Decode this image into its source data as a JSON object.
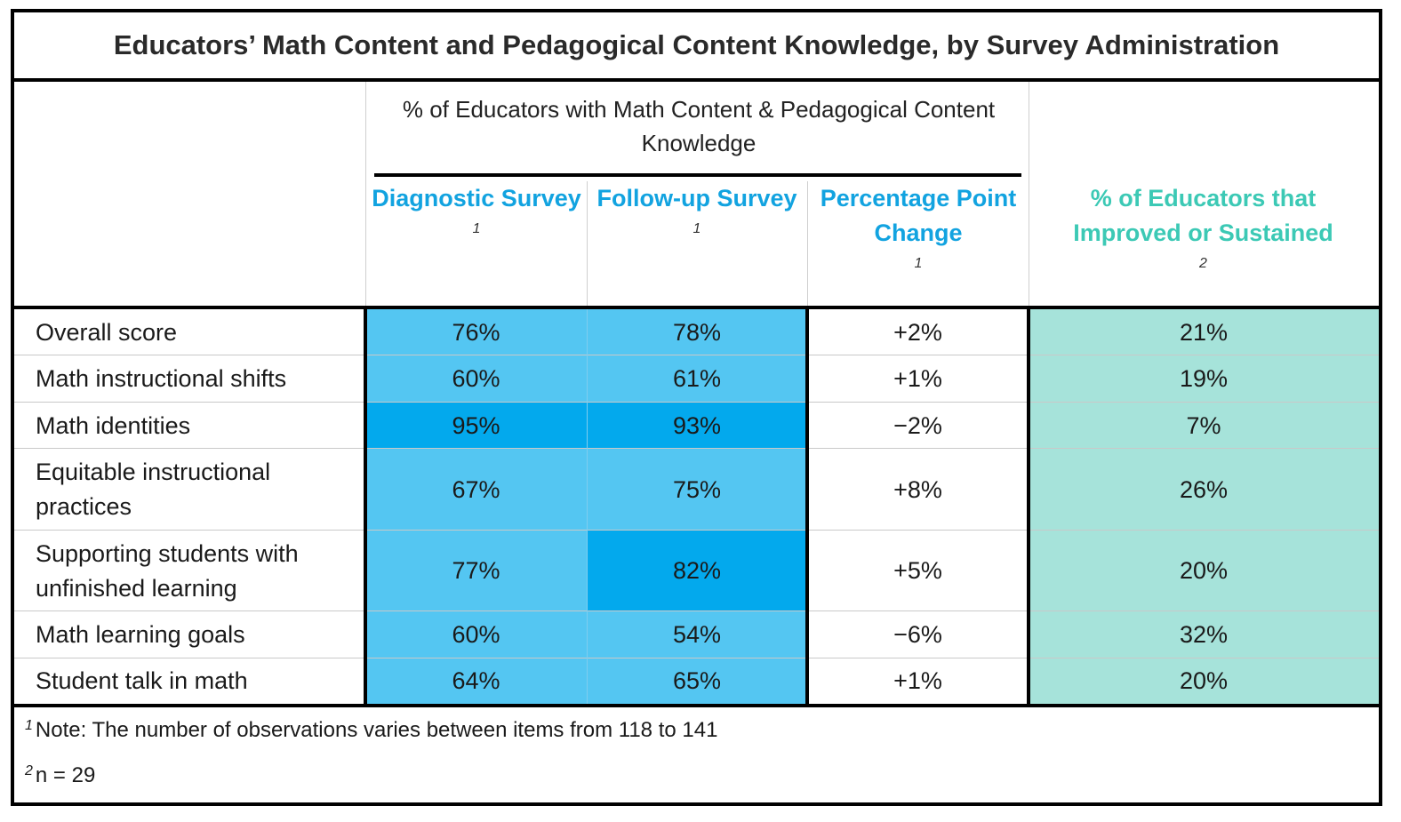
{
  "chart_data": {
    "type": "table",
    "title": "Educators’ Math Content and Pedagogical Content Knowledge, by Survey Administration",
    "group_header": "% of Educators with Math Content & Pedagogical Content Knowledge",
    "columns": [
      {
        "label": "Diagnostic Survey",
        "footnote": "1",
        "color": "#12a3e0"
      },
      {
        "label": "Follow-up Survey",
        "footnote": "1",
        "color": "#12a3e0"
      },
      {
        "label": "Percentage Point Change",
        "footnote": "1",
        "color": "#12a3e0"
      },
      {
        "label": "% of Educators that Improved or Sustained",
        "footnote": "2",
        "color": "#3cc9b5"
      }
    ],
    "rows": [
      {
        "label": "Overall score",
        "diagnostic": "76%",
        "followup": "78%",
        "change": "+2%",
        "improved": "21%"
      },
      {
        "label": "Math instructional shifts",
        "diagnostic": "60%",
        "followup": "61%",
        "change": "+1%",
        "improved": "19%"
      },
      {
        "label": "Math identities",
        "diagnostic": "95%",
        "followup": "93%",
        "change": "−2%",
        "improved": "7%"
      },
      {
        "label": "Equitable instructional practices",
        "diagnostic": "67%",
        "followup": "75%",
        "change": "+8%",
        "improved": "26%"
      },
      {
        "label": "Supporting students with unfinished learning",
        "diagnostic": "77%",
        "followup": "82%",
        "change": "+5%",
        "improved": "20%"
      },
      {
        "label": "Math learning goals",
        "diagnostic": "60%",
        "followup": "54%",
        "change": "−6%",
        "improved": "32%"
      },
      {
        "label": "Student talk in math",
        "diagnostic": "64%",
        "followup": "65%",
        "change": "+1%",
        "improved": "20%"
      }
    ],
    "highlight_colors": {
      "light_blue": "#54c6f2",
      "dark_blue": "#03a9ed",
      "teal": "#a6e3da"
    },
    "notes": [
      {
        "marker": "1",
        "text": "Note: The number of observations varies between items from 118 to 141"
      },
      {
        "marker": "2",
        "text": "n = 29"
      }
    ]
  }
}
